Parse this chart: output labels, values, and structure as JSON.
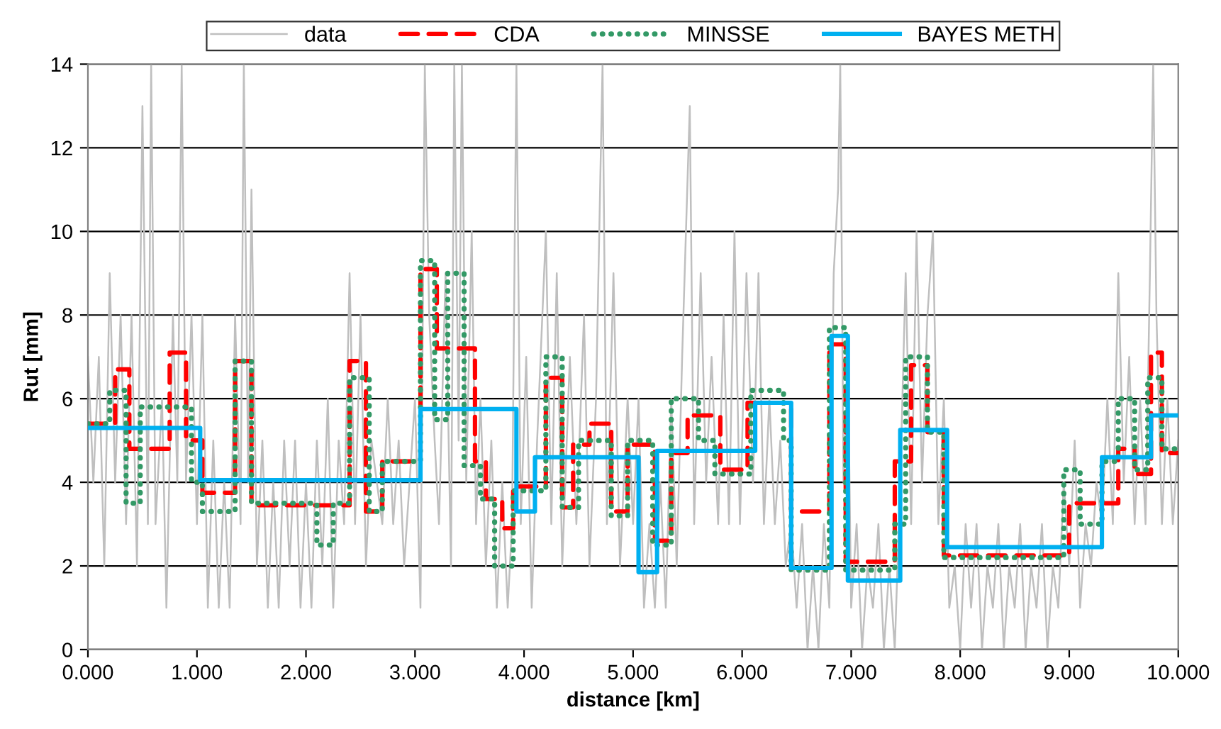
{
  "chart_data": {
    "type": "line",
    "xlabel": "distance [km]",
    "ylabel": "Rut [mm]",
    "xlim": [
      0,
      10
    ],
    "xticks": [
      {
        "value": 0,
        "label": "0.000"
      },
      {
        "value": 1,
        "label": "1.000"
      },
      {
        "value": 2,
        "label": "2.000"
      },
      {
        "value": 3,
        "label": "3.000"
      },
      {
        "value": 4,
        "label": "4.000"
      },
      {
        "value": 5,
        "label": "5.000"
      },
      {
        "value": 6,
        "label": "6.000"
      },
      {
        "value": 7,
        "label": "7.000"
      },
      {
        "value": 8,
        "label": "8.000"
      },
      {
        "value": 9,
        "label": "9.000"
      },
      {
        "value": 10,
        "label": "10.000"
      }
    ],
    "ylim": [
      0,
      14
    ],
    "yticks": [
      0,
      2,
      4,
      6,
      8,
      10,
      12,
      14
    ],
    "grid": "y",
    "legend": "top",
    "series": [
      {
        "name": "data",
        "color": "#bfbfbf",
        "line_style": "solid",
        "x": [
          0.0,
          0.05,
          0.1,
          0.15,
          0.2,
          0.25,
          0.3,
          0.35,
          0.4,
          0.45,
          0.5,
          0.55,
          0.58,
          0.62,
          0.68,
          0.72,
          0.78,
          0.82,
          0.86,
          0.9,
          0.95,
          1.0,
          1.05,
          1.1,
          1.15,
          1.2,
          1.25,
          1.3,
          1.35,
          1.4,
          1.43,
          1.47,
          1.5,
          1.55,
          1.6,
          1.65,
          1.7,
          1.75,
          1.8,
          1.85,
          1.9,
          1.95,
          2.0,
          2.05,
          2.1,
          2.15,
          2.2,
          2.25,
          2.3,
          2.35,
          2.4,
          2.45,
          2.5,
          2.55,
          2.6,
          2.7,
          2.75,
          2.8,
          2.85,
          2.9,
          3.0,
          3.05,
          3.09,
          3.13,
          3.18,
          3.22,
          3.28,
          3.33,
          3.36,
          3.4,
          3.43,
          3.47,
          3.52,
          3.56,
          3.6,
          3.65,
          3.7,
          3.75,
          3.8,
          3.85,
          3.89,
          3.93,
          3.97,
          4.02,
          4.07,
          4.12,
          4.2,
          4.25,
          4.3,
          4.35,
          4.42,
          4.48,
          4.55,
          4.6,
          4.66,
          4.72,
          4.76,
          4.82,
          4.88,
          4.95,
          5.0,
          5.05,
          5.1,
          5.15,
          5.2,
          5.25,
          5.3,
          5.35,
          5.4,
          5.45,
          5.52,
          5.56,
          5.62,
          5.67,
          5.72,
          5.78,
          5.83,
          5.88,
          5.93,
          5.98,
          6.04,
          6.1,
          6.15,
          6.2,
          6.25,
          6.3,
          6.35,
          6.4,
          6.45,
          6.5,
          6.55,
          6.6,
          6.65,
          6.7,
          6.75,
          6.8,
          6.84,
          6.88,
          6.9,
          6.93,
          6.97,
          7.0,
          7.05,
          7.1,
          7.15,
          7.2,
          7.25,
          7.3,
          7.35,
          7.4,
          7.45,
          7.5,
          7.55,
          7.6,
          7.65,
          7.7,
          7.75,
          7.8,
          7.85,
          7.9,
          7.95,
          8.0,
          8.05,
          8.1,
          8.15,
          8.2,
          8.25,
          8.3,
          8.35,
          8.4,
          8.45,
          8.5,
          8.55,
          8.6,
          8.65,
          8.7,
          8.75,
          8.8,
          8.85,
          8.9,
          8.95,
          9.0,
          9.05,
          9.1,
          9.15,
          9.2,
          9.25,
          9.3,
          9.35,
          9.4,
          9.45,
          9.5,
          9.55,
          9.6,
          9.65,
          9.7,
          9.74,
          9.77,
          9.8,
          9.85,
          9.9,
          9.95,
          10.0
        ],
        "values": [
          7,
          4,
          7,
          2,
          9,
          4,
          8,
          3,
          8,
          2,
          13,
          3,
          14,
          3,
          6,
          1,
          8,
          4,
          14,
          4,
          8,
          3,
          8,
          1,
          5,
          1,
          4,
          1,
          8,
          3,
          14,
          4,
          11,
          2,
          5,
          1,
          4,
          1,
          5,
          2,
          5,
          1,
          4,
          1,
          5,
          2,
          6,
          1,
          5,
          3,
          9,
          3,
          8,
          2,
          5,
          3,
          6,
          3,
          5,
          2,
          6,
          1,
          14,
          8,
          5,
          3,
          9,
          2,
          14,
          5,
          14,
          4,
          10,
          3,
          6,
          2,
          5,
          1,
          4,
          1,
          3,
          14,
          3,
          7,
          1,
          5,
          10,
          3,
          9,
          2,
          7,
          3,
          8,
          2,
          6,
          14,
          3,
          9,
          2,
          6,
          3,
          6,
          1,
          3,
          1,
          4,
          1,
          6,
          2,
          7,
          13,
          3,
          9,
          4,
          7,
          3,
          8,
          3,
          10,
          3,
          9,
          4,
          9,
          3,
          6,
          3,
          5,
          2,
          3,
          1,
          3,
          0,
          2,
          0,
          3,
          1,
          9,
          11,
          14,
          4,
          7,
          1,
          3,
          0,
          2,
          1,
          3,
          0,
          2,
          0,
          4,
          9,
          3,
          10,
          4,
          8,
          10,
          3,
          6,
          1,
          2,
          0,
          3,
          1,
          3,
          0,
          2,
          1,
          3,
          0,
          2,
          1,
          3,
          0,
          2,
          1,
          3,
          0,
          2,
          1,
          4,
          2,
          5,
          1,
          3,
          2,
          4,
          3,
          6,
          3,
          9,
          4,
          7,
          3,
          6,
          3,
          9,
          14,
          8,
          3,
          6,
          3,
          5
        ]
      },
      {
        "name": "CDA",
        "type": "step",
        "color": "#ff0000",
        "line_style": "dashed",
        "x": [
          0,
          0.25,
          0.38,
          0.75,
          0.9,
          1.05,
          1.35,
          1.5,
          2.4,
          2.55,
          2.7,
          3.05,
          3.2,
          3.55,
          3.65,
          3.8,
          3.9,
          4.2,
          4.35,
          4.45,
          4.6,
          4.8,
          4.95,
          5.2,
          5.35,
          5.5,
          5.8,
          6.05,
          6.45,
          6.8,
          6.95,
          7.4,
          7.55,
          7.7,
          7.85,
          9.0,
          9.45,
          9.6,
          9.75,
          9.85,
          10
        ],
        "values": [
          5.4,
          6.7,
          4.8,
          7.1,
          5.0,
          3.75,
          6.9,
          3.45,
          6.9,
          3.3,
          4.5,
          9.1,
          7.2,
          4.5,
          3.6,
          2.9,
          3.9,
          6.5,
          3.4,
          4.9,
          5.4,
          3.3,
          4.9,
          2.6,
          4.7,
          5.6,
          4.3,
          5.9,
          3.3,
          7.3,
          2.1,
          4.5,
          6.8,
          5.2,
          2.25,
          3.5,
          4.8,
          4.2,
          7.1,
          4.7,
          4.7
        ]
      },
      {
        "name": "MINSSE",
        "type": "step",
        "color": "#339966",
        "line_style": "dotted",
        "x": [
          0,
          0.2,
          0.35,
          0.48,
          0.95,
          1.05,
          1.35,
          1.5,
          2.1,
          2.25,
          2.4,
          2.58,
          2.7,
          3.05,
          3.18,
          3.3,
          3.45,
          3.6,
          3.73,
          3.9,
          4.2,
          4.35,
          4.5,
          4.8,
          4.95,
          5.18,
          5.35,
          5.6,
          5.75,
          6.08,
          6.38,
          6.45,
          6.8,
          6.95,
          7.4,
          7.5,
          7.7,
          7.85,
          8.95,
          9.1,
          9.3,
          9.45,
          9.6,
          9.72,
          9.85,
          10
        ],
        "values": [
          5.4,
          6.2,
          3.5,
          5.8,
          4.0,
          3.3,
          6.9,
          3.5,
          2.5,
          3.5,
          6.5,
          3.3,
          4.5,
          9.3,
          5.5,
          9.0,
          4.4,
          3.6,
          2.0,
          3.8,
          7.0,
          3.4,
          5.0,
          3.2,
          5.0,
          2.5,
          6.0,
          5.0,
          4.2,
          6.2,
          5.0,
          1.9,
          7.7,
          1.9,
          3.0,
          7.0,
          5.2,
          2.2,
          4.3,
          3.0,
          4.5,
          6.0,
          4.3,
          6.5,
          4.8,
          4.8
        ]
      },
      {
        "name": "BAYES METH",
        "type": "step",
        "color": "#00b0f0",
        "line_style": "solid",
        "x": [
          0,
          1.03,
          3.05,
          3.93,
          4.1,
          5.05,
          5.22,
          6.12,
          6.45,
          6.82,
          6.97,
          7.45,
          7.88,
          9.3,
          9.75,
          10
        ],
        "values": [
          5.3,
          4.05,
          5.75,
          3.3,
          4.6,
          1.85,
          4.75,
          5.9,
          1.95,
          7.5,
          1.65,
          5.25,
          2.45,
          4.6,
          5.6,
          5.6
        ]
      }
    ]
  }
}
